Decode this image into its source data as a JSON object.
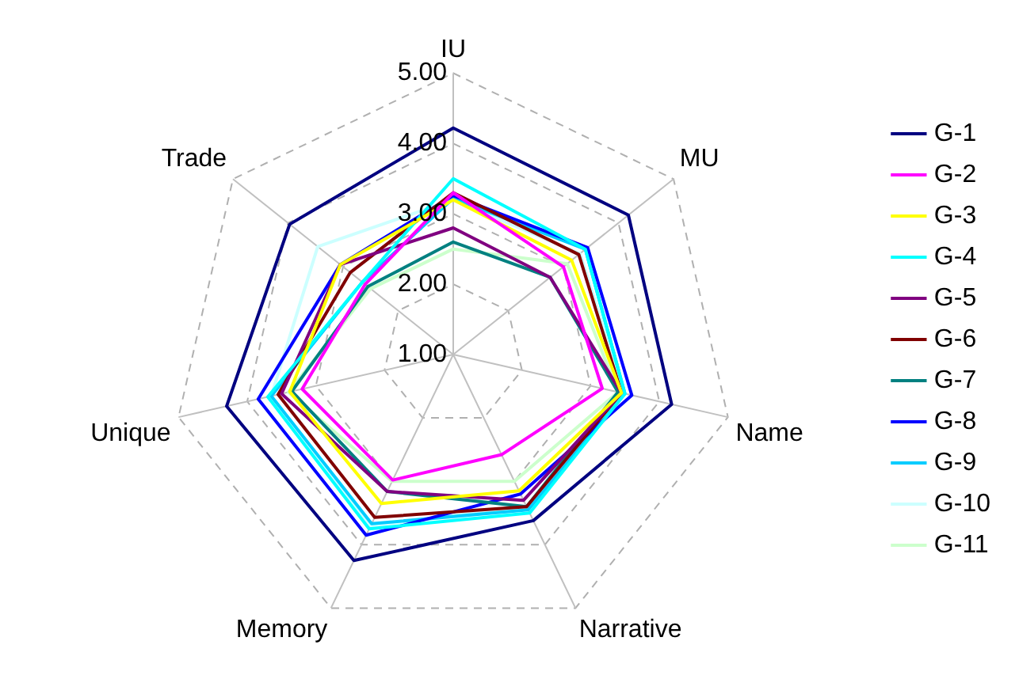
{
  "chart_data": {
    "type": "radar",
    "categories": [
      "IU",
      "MU",
      "Name",
      "Narrative",
      "Memory",
      "Unique",
      "Trade"
    ],
    "ylim": [
      1,
      5
    ],
    "yticks": [
      {
        "value": 1,
        "label": "1.00"
      },
      {
        "value": 2,
        "label": "2.00"
      },
      {
        "value": 3,
        "label": "3.00"
      },
      {
        "value": 4,
        "label": "4.00"
      },
      {
        "value": 5,
        "label": "5.00"
      }
    ],
    "grid": true,
    "legend": "right",
    "marker": "none",
    "series": [
      {
        "name": "G-1",
        "color": "#000080",
        "values": [
          4.22,
          4.18,
          4.18,
          3.62,
          4.25,
          4.3,
          3.97
        ]
      },
      {
        "name": "G-2",
        "color": "#ff00ff",
        "values": [
          3.3,
          3.0,
          3.17,
          2.58,
          2.98,
          3.2,
          2.6
        ]
      },
      {
        "name": "G-3",
        "color": "#ffff00",
        "values": [
          3.2,
          3.15,
          3.45,
          3.15,
          3.35,
          3.38,
          3.05
        ]
      },
      {
        "name": "G-4",
        "color": "#00ffff",
        "values": [
          3.5,
          3.4,
          3.5,
          3.5,
          3.75,
          3.7,
          2.65
        ]
      },
      {
        "name": "G-5",
        "color": "#800080",
        "values": [
          2.8,
          2.76,
          3.45,
          3.3,
          3.16,
          3.5,
          3.05
        ]
      },
      {
        "name": "G-6",
        "color": "#800000",
        "values": [
          3.3,
          3.28,
          3.45,
          3.4,
          3.57,
          3.55,
          2.87
        ]
      },
      {
        "name": "G-7",
        "color": "#008080",
        "values": [
          2.6,
          2.76,
          3.4,
          3.4,
          3.16,
          3.35,
          2.55
        ]
      },
      {
        "name": "G-8",
        "color": "#0000ff",
        "values": [
          3.26,
          3.44,
          3.6,
          3.2,
          3.85,
          3.84,
          3.05
        ]
      },
      {
        "name": "G-9",
        "color": "#00ccff",
        "values": [
          3.22,
          3.4,
          3.5,
          3.45,
          3.67,
          3.65,
          2.65
        ]
      },
      {
        "name": "G-10",
        "color": "#ccffff",
        "values": [
          3.2,
          3.3,
          3.5,
          3.4,
          3.7,
          3.65,
          3.46
        ]
      },
      {
        "name": "G-11",
        "color": "#ccffcc",
        "values": [
          2.5,
          3.07,
          3.4,
          3.0,
          3.0,
          3.4,
          2.5
        ]
      }
    ]
  }
}
